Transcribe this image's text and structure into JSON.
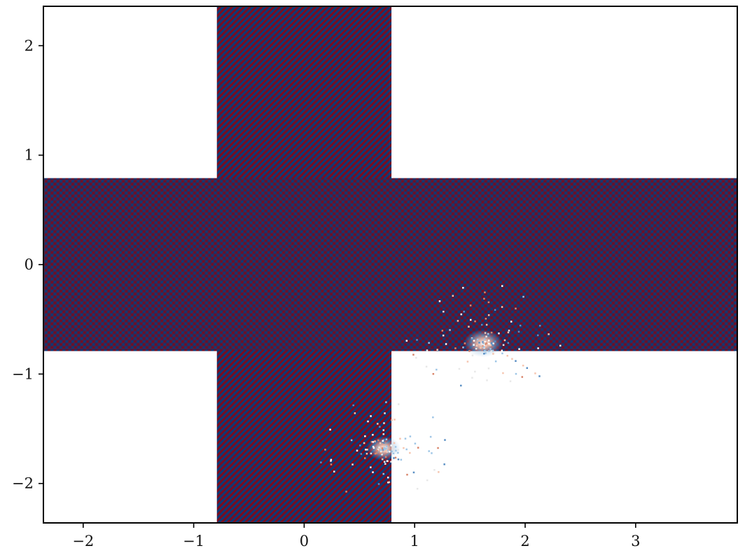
{
  "chart_data": {
    "type": "heatmap",
    "title": "",
    "xlabel": "",
    "ylabel": "",
    "xlim": [
      -2.36,
      3.92
    ],
    "ylim": [
      -2.36,
      2.36
    ],
    "x_ticks": [
      {
        "value": -2,
        "label": "−2"
      },
      {
        "value": -1,
        "label": "−1"
      },
      {
        "value": 0,
        "label": "0"
      },
      {
        "value": 1,
        "label": "1"
      },
      {
        "value": 2,
        "label": "2"
      },
      {
        "value": 3,
        "label": "3"
      }
    ],
    "y_ticks": [
      {
        "value": 2,
        "label": "2"
      },
      {
        "value": 1,
        "label": "1"
      },
      {
        "value": 0,
        "label": "0"
      },
      {
        "value": -1,
        "label": "−1"
      },
      {
        "value": -2,
        "label": "−2"
      }
    ],
    "domain": {
      "shape": "cross",
      "vertical_bar": {
        "x": [
          -0.79,
          0.79
        ],
        "y": [
          -2.36,
          2.36
        ]
      },
      "horizontal_bar": {
        "x": [
          -2.36,
          3.92
        ],
        "y": [
          -0.79,
          0.79
        ]
      }
    },
    "colormap": {
      "name": "diverging red-blue",
      "high": "#7a0c1f",
      "low": "#0b3a78",
      "mid": "#f4f4f4"
    },
    "bright_regions": [
      {
        "x": 0.72,
        "y": -1.68,
        "spread": 0.22
      },
      {
        "x": 1.62,
        "y": -0.72,
        "spread": 0.25
      }
    ],
    "grid": false,
    "legend": "none"
  }
}
